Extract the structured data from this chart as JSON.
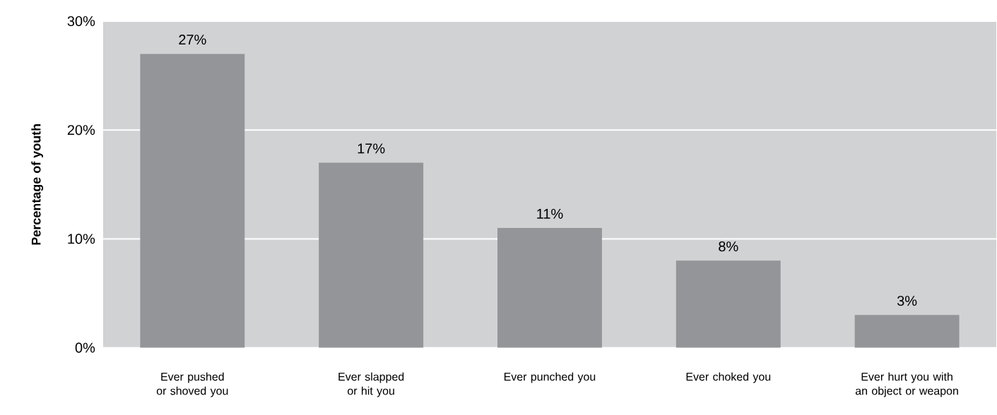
{
  "chart_data": {
    "type": "bar",
    "ylabel": "Percentage of youth",
    "categories": [
      "Ever pushed or shoved you",
      "Ever slapped or hit you",
      "Ever punched you",
      "Ever choked you",
      "Ever hurt you with an object or weapon"
    ],
    "values": [
      27,
      17,
      11,
      8,
      3
    ],
    "value_labels": [
      "27%",
      "17%",
      "11%",
      "8%",
      "3%"
    ],
    "color": "#939598",
    "ylim": [
      0,
      30
    ],
    "yticks": [
      {
        "value": 0,
        "label": "0%"
      },
      {
        "value": 10,
        "label": "10%"
      },
      {
        "value": 20,
        "label": "20%"
      },
      {
        "value": 30,
        "label": "30%"
      }
    ],
    "grid": "y"
  }
}
